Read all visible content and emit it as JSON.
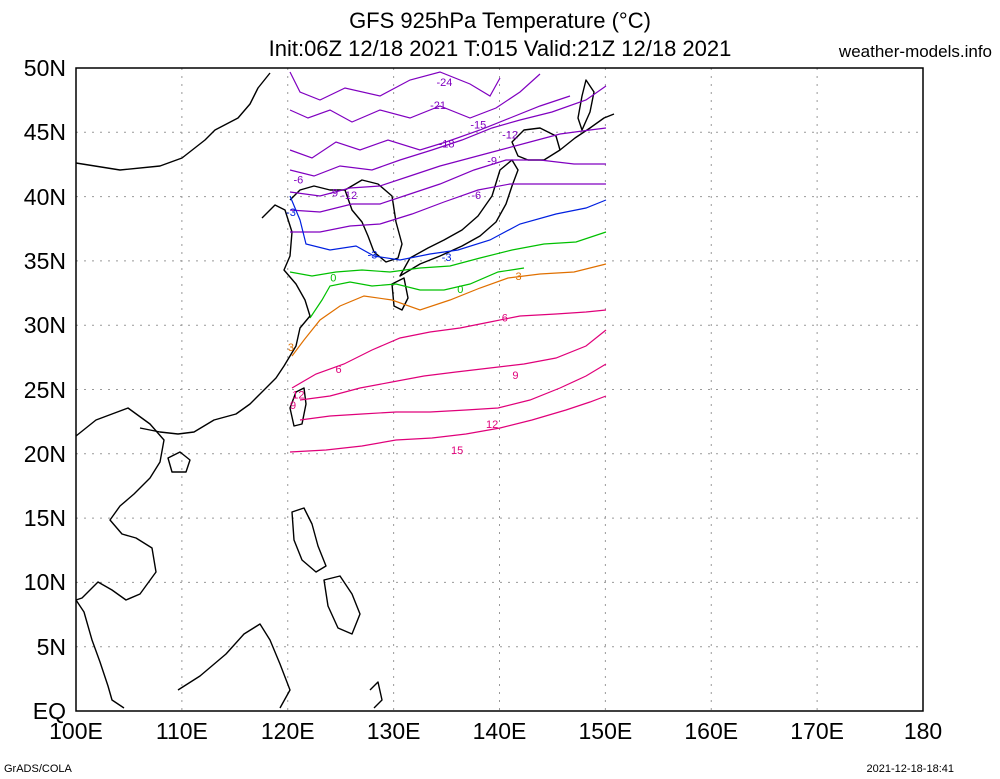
{
  "title": {
    "line1": "GFS 925hPa Temperature (°C)",
    "line2": "Init:06Z 12/18 2021 T:015 Valid:21Z 12/18 2021"
  },
  "source_site": "weather-models.info",
  "footer": {
    "left": "GrADS/COLA",
    "right": "2021-12-18-18:41"
  },
  "axes": {
    "x_ticks": [
      "100E",
      "110E",
      "120E",
      "130E",
      "140E",
      "150E",
      "160E",
      "170E",
      "180"
    ],
    "y_ticks": [
      "50N",
      "45N",
      "40N",
      "35N",
      "30N",
      "25N",
      "20N",
      "15N",
      "10N",
      "5N",
      "EQ"
    ],
    "x_range_lon": [
      100,
      180
    ],
    "y_range_lat": [
      0,
      50
    ],
    "grid": "dotted"
  },
  "contour_labels": [
    {
      "text": "-24",
      "lon": 134.8,
      "lat": 48.6,
      "color": "#8000c0"
    },
    {
      "text": "-21",
      "lon": 134.2,
      "lat": 46.8,
      "color": "#8000c0"
    },
    {
      "text": "-18",
      "lon": 135.0,
      "lat": 43.8,
      "color": "#8000c0"
    },
    {
      "text": "-15",
      "lon": 138.0,
      "lat": 45.3,
      "color": "#8000c0"
    },
    {
      "text": "-12",
      "lon": 141.0,
      "lat": 44.5,
      "color": "#8000c0"
    },
    {
      "text": "-9",
      "lon": 139.3,
      "lat": 42.5,
      "color": "#8000c0"
    },
    {
      "text": "-6",
      "lon": 137.8,
      "lat": 39.8,
      "color": "#8000c0"
    },
    {
      "text": "-6",
      "lon": 121.0,
      "lat": 41.0,
      "color": "#8000c0"
    },
    {
      "text": "-9",
      "lon": 124.3,
      "lat": 40.0,
      "color": "#8000c0"
    },
    {
      "text": "-12",
      "lon": 125.8,
      "lat": 39.8,
      "color": "#8000c0"
    },
    {
      "text": "-3",
      "lon": 120.3,
      "lat": 38.5,
      "color": "#0020e0"
    },
    {
      "text": "-3",
      "lon": 128.0,
      "lat": 35.2,
      "color": "#0020e0"
    },
    {
      "text": "-3",
      "lon": 135.0,
      "lat": 35.0,
      "color": "#0020e0"
    },
    {
      "text": "0",
      "lon": 124.3,
      "lat": 33.4,
      "color": "#00c000"
    },
    {
      "text": "0",
      "lon": 136.3,
      "lat": 32.5,
      "color": "#00c000"
    },
    {
      "text": "3",
      "lon": 141.8,
      "lat": 33.5,
      "color": "#e07000"
    },
    {
      "text": "3",
      "lon": 120.3,
      "lat": 28.0,
      "color": "#e07000"
    },
    {
      "text": "6",
      "lon": 140.5,
      "lat": 30.3,
      "color": "#e0007a"
    },
    {
      "text": "6",
      "lon": 124.8,
      "lat": 26.3,
      "color": "#e0007a"
    },
    {
      "text": "9",
      "lon": 141.5,
      "lat": 25.8,
      "color": "#e0007a"
    },
    {
      "text": "9",
      "lon": 120.5,
      "lat": 23.5,
      "color": "#e0007a"
    },
    {
      "text": "12",
      "lon": 121.0,
      "lat": 24.3,
      "color": "#e0007a"
    },
    {
      "text": "12",
      "lon": 139.3,
      "lat": 22.0,
      "color": "#e0007a"
    },
    {
      "text": "15",
      "lon": 136.0,
      "lat": 20.0,
      "color": "#e0007a"
    }
  ],
  "colors": {
    "very_cold": "#8000c0",
    "cold": "#0020e0",
    "zero": "#00c000",
    "warm": "#e07000",
    "hot": "#e0007a"
  }
}
